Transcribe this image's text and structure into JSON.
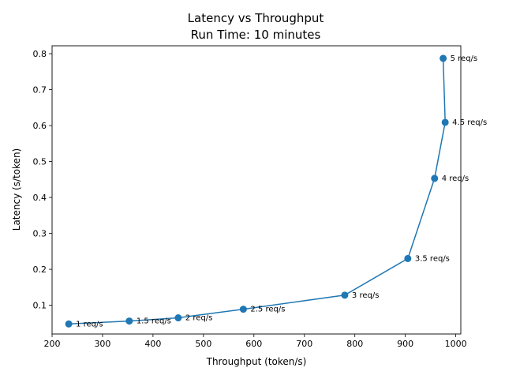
{
  "chart_data": {
    "type": "line",
    "title": "Latency vs Throughput",
    "subtitle": "Run Time: 10 minutes",
    "xlabel": "Throughput (token/s)",
    "ylabel": "Latency (s/token)",
    "xlim": [
      200,
      1010
    ],
    "ylim": [
      0.02,
      0.822
    ],
    "xticks": [
      200,
      300,
      400,
      500,
      600,
      700,
      800,
      900,
      1000
    ],
    "yticks": [
      0.1,
      0.2,
      0.3,
      0.4,
      0.5,
      0.6,
      0.7,
      0.8
    ],
    "grid": false,
    "marker": "circle",
    "color": "#1f77b4",
    "series": [
      {
        "x": [
          233,
          353,
          450,
          579,
          780,
          905,
          958,
          979,
          975
        ],
        "y": [
          0.048,
          0.056,
          0.065,
          0.089,
          0.128,
          0.23,
          0.453,
          0.609,
          0.787
        ],
        "labels": [
          "1 req/s",
          "1.5 req/s",
          "2 req/s",
          "2.5 req/s",
          "3 req/s",
          "3.5 req/s",
          "4 req/s",
          "4.5 req/s",
          "5 req/s"
        ]
      }
    ]
  }
}
